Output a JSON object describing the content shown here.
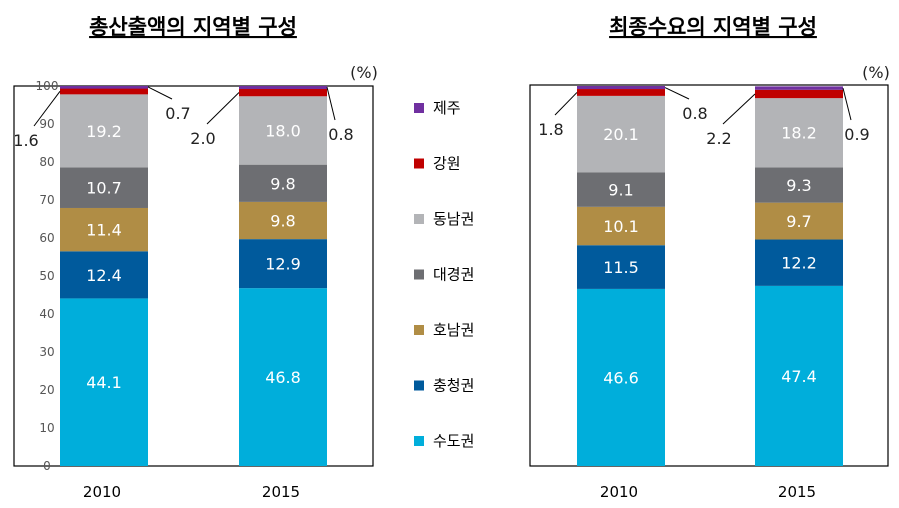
{
  "chart_data": [
    {
      "type": "bar",
      "stacked": true,
      "title": "총산출액의 지역별 구성",
      "unit": "(%)",
      "categories": [
        "2010",
        "2015"
      ],
      "ylim": [
        0,
        100
      ],
      "yticks": [
        "0",
        "10",
        "20",
        "30",
        "40",
        "50",
        "60",
        "70",
        "80",
        "90",
        "100"
      ],
      "series": [
        {
          "name": "수도권",
          "color": "#00AEDB",
          "values": [
            44.1,
            46.8
          ]
        },
        {
          "name": "충청권",
          "color": "#005A9C",
          "values": [
            12.4,
            12.9
          ]
        },
        {
          "name": "호남권",
          "color": "#B08D45",
          "values": [
            11.4,
            9.8
          ]
        },
        {
          "name": "대경권",
          "color": "#6D6E72",
          "values": [
            10.7,
            9.8
          ]
        },
        {
          "name": "동남권",
          "color": "#B3B4B7",
          "values": [
            19.2,
            18.0
          ]
        },
        {
          "name": "강원",
          "color": "#C00000",
          "values": [
            1.6,
            2.0
          ]
        },
        {
          "name": "제주",
          "color": "#7030A0",
          "values": [
            0.7,
            0.8
          ]
        }
      ]
    },
    {
      "type": "bar",
      "stacked": true,
      "title": "최종수요의 지역별 구성",
      "unit": "(%)",
      "categories": [
        "2010",
        "2015"
      ],
      "ylim": [
        0,
        100
      ],
      "series": [
        {
          "name": "수도권",
          "color": "#00AEDB",
          "values": [
            46.6,
            47.4
          ]
        },
        {
          "name": "충청권",
          "color": "#005A9C",
          "values": [
            11.5,
            12.2
          ]
        },
        {
          "name": "호남권",
          "color": "#B08D45",
          "values": [
            10.1,
            9.7
          ]
        },
        {
          "name": "대경권",
          "color": "#6D6E72",
          "values": [
            9.1,
            9.3
          ]
        },
        {
          "name": "동남권",
          "color": "#B3B4B7",
          "values": [
            20.1,
            18.2
          ]
        },
        {
          "name": "강원",
          "color": "#C00000",
          "values": [
            1.8,
            2.2
          ]
        },
        {
          "name": "제주",
          "color": "#7030A0",
          "values": [
            0.8,
            0.9
          ]
        }
      ]
    }
  ],
  "legend": [
    {
      "name": "제주",
      "color": "#7030A0"
    },
    {
      "name": "강원",
      "color": "#C00000"
    },
    {
      "name": "동남권",
      "color": "#B3B4B7"
    },
    {
      "name": "대경권",
      "color": "#6D6E72"
    },
    {
      "name": "호남권",
      "color": "#B08D45"
    },
    {
      "name": "충청권",
      "color": "#005A9C"
    },
    {
      "name": "수도권",
      "color": "#00AEDB"
    }
  ]
}
